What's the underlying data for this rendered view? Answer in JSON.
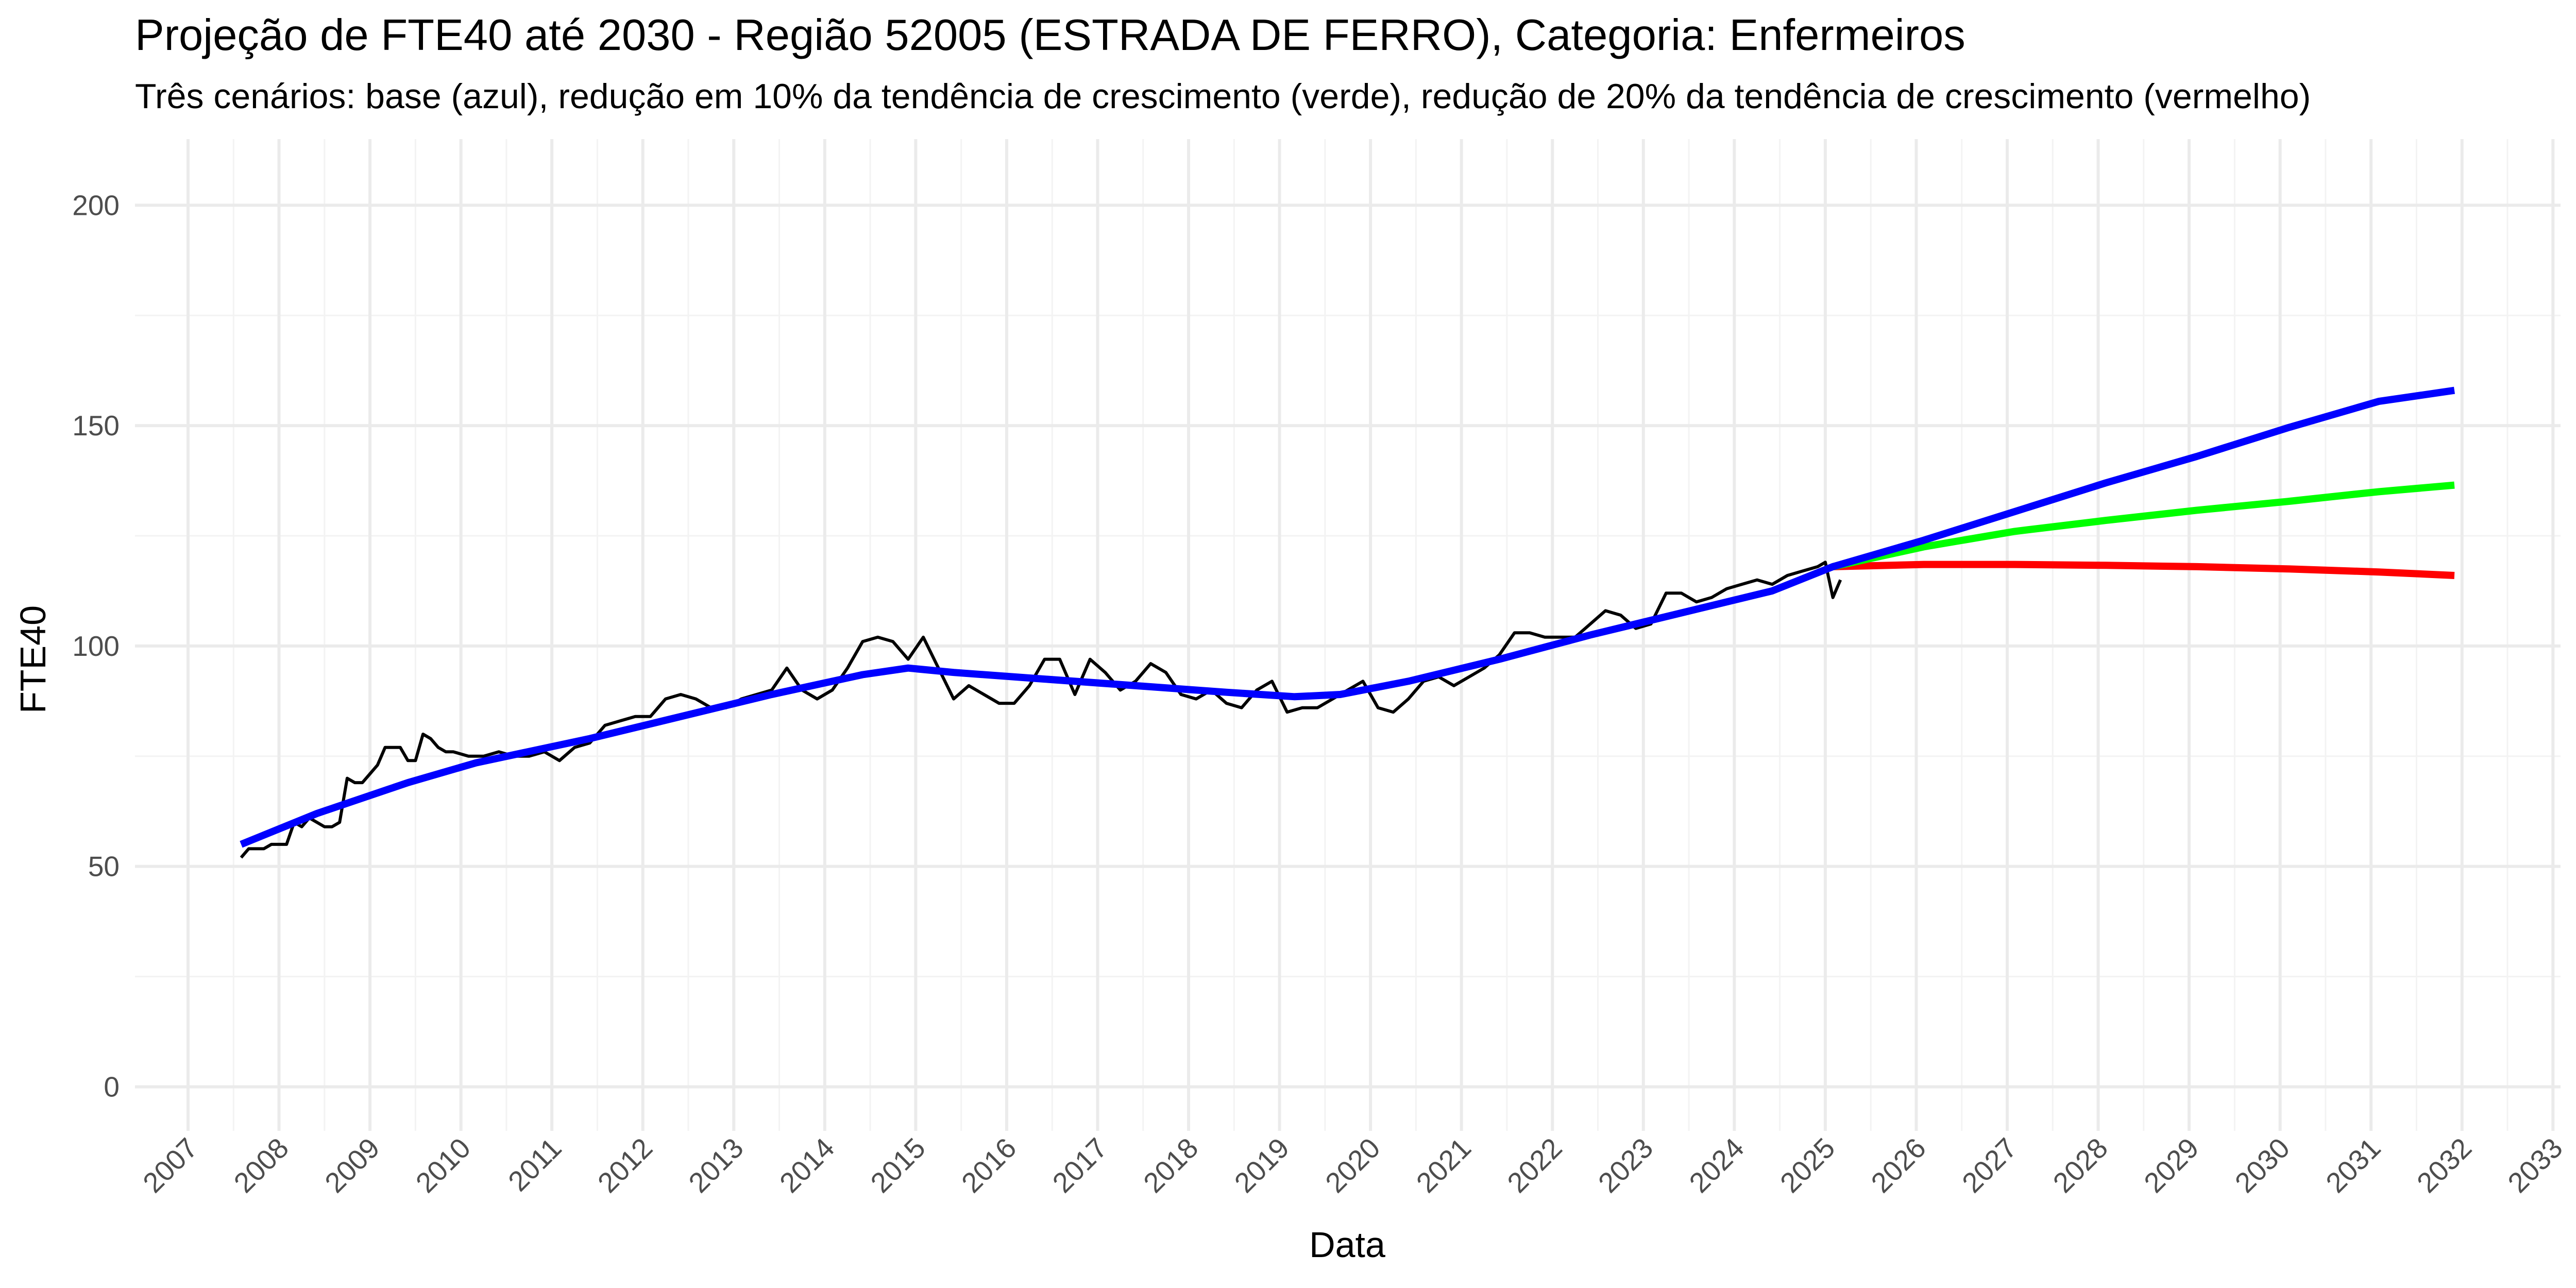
{
  "chart_data": {
    "type": "line",
    "title": "Projeção de FTE40 até 2030 - Região 52005 (ESTRADA DE FERRO), Categoria: Enfermeiros",
    "subtitle": "Três cenários: base (azul), redução em 10% da tendência de crescimento (verde), redução de 20% da tendência de crescimento (vermelho)",
    "xlabel": "Data",
    "ylabel": "FTE40",
    "xlim": [
      "2006-06-01",
      "2033-02-01"
    ],
    "ylim": [
      -10,
      215
    ],
    "x_ticks": [
      "2007",
      "2008",
      "2009",
      "2010",
      "2011",
      "2012",
      "2013",
      "2014",
      "2015",
      "2016",
      "2017",
      "2018",
      "2019",
      "2020",
      "2021",
      "2022",
      "2023",
      "2024",
      "2025",
      "2026",
      "2027",
      "2028",
      "2029",
      "2030",
      "2031",
      "2032",
      "2033"
    ],
    "y_ticks": [
      0,
      50,
      100,
      150,
      200
    ],
    "grid": true,
    "legend": "none",
    "colors": {
      "observed": "#000000",
      "base": "#0000ff",
      "green": "#00ff00",
      "red": "#ff0000"
    },
    "series": [
      {
        "key": "observed",
        "color": "#000000",
        "x": [
          "2007-08-01",
          "2007-09-01",
          "2007-10-01",
          "2007-11-01",
          "2007-12-01",
          "2008-01-01",
          "2008-02-01",
          "2008-03-01",
          "2008-04-01",
          "2008-05-01",
          "2008-06-01",
          "2008-07-01",
          "2008-08-01",
          "2008-09-01",
          "2008-10-01",
          "2008-11-01",
          "2008-12-01",
          "2009-01-01",
          "2009-02-01",
          "2009-03-01",
          "2009-04-01",
          "2009-05-01",
          "2009-06-01",
          "2009-07-01",
          "2009-08-01",
          "2009-09-01",
          "2009-10-01",
          "2009-11-01",
          "2009-12-01",
          "2010-02-01",
          "2010-04-01",
          "2010-06-01",
          "2010-08-01",
          "2010-10-01",
          "2010-12-01",
          "2011-02-01",
          "2011-04-01",
          "2011-06-01",
          "2011-08-01",
          "2011-10-01",
          "2011-12-01",
          "2012-02-01",
          "2012-04-01",
          "2012-06-01",
          "2012-08-01",
          "2012-10-01",
          "2012-12-01",
          "2013-02-01",
          "2013-04-01",
          "2013-06-01",
          "2013-08-01",
          "2013-10-01",
          "2013-12-01",
          "2014-02-01",
          "2014-04-01",
          "2014-06-01",
          "2014-08-01",
          "2014-10-01",
          "2014-12-01",
          "2015-02-01",
          "2015-04-01",
          "2015-06-01",
          "2015-08-01",
          "2015-10-01",
          "2015-12-01",
          "2016-02-01",
          "2016-04-01",
          "2016-06-01",
          "2016-08-01",
          "2016-10-01",
          "2016-12-01",
          "2017-02-01",
          "2017-04-01",
          "2017-06-01",
          "2017-08-01",
          "2017-10-01",
          "2017-12-01",
          "2018-02-01",
          "2018-04-01",
          "2018-06-01",
          "2018-08-01",
          "2018-10-01",
          "2018-12-01",
          "2019-02-01",
          "2019-04-01",
          "2019-06-01",
          "2019-08-01",
          "2019-10-01",
          "2019-12-01",
          "2020-02-01",
          "2020-04-01",
          "2020-06-01",
          "2020-08-01",
          "2020-10-01",
          "2020-12-01",
          "2021-02-01",
          "2021-04-01",
          "2021-06-01",
          "2021-08-01",
          "2021-10-01",
          "2021-12-01",
          "2022-02-01",
          "2022-04-01",
          "2022-06-01",
          "2022-08-01",
          "2022-10-01",
          "2022-12-01",
          "2023-02-01",
          "2023-04-01",
          "2023-06-01",
          "2023-08-01",
          "2023-10-01",
          "2023-12-01",
          "2024-02-01",
          "2024-04-01",
          "2024-06-01",
          "2024-08-01",
          "2024-10-01",
          "2024-12-01",
          "2025-01-01",
          "2025-02-01",
          "2025-03-01"
        ],
        "values": [
          52,
          54,
          54,
          54,
          55,
          55,
          55,
          60,
          59,
          61,
          60,
          59,
          59,
          60,
          70,
          69,
          69,
          71,
          73,
          77,
          77,
          77,
          74,
          74,
          80,
          79,
          77,
          76,
          76,
          75,
          75,
          76,
          75,
          75,
          76,
          74,
          77,
          78,
          82,
          83,
          84,
          84,
          88,
          89,
          88,
          86,
          86,
          88,
          89,
          90,
          95,
          90,
          88,
          90,
          95,
          101,
          102,
          101,
          97,
          102,
          95,
          88,
          91,
          89,
          87,
          87,
          91,
          97,
          97,
          89,
          97,
          94,
          90,
          92,
          96,
          94,
          89,
          88,
          90,
          87,
          86,
          90,
          92,
          85,
          86,
          86,
          88,
          90,
          92,
          86,
          85,
          88,
          92,
          93,
          91,
          93,
          95,
          98,
          103,
          103,
          102,
          102,
          102,
          105,
          108,
          107,
          104,
          105,
          112,
          112,
          110,
          111,
          113,
          114,
          115,
          114,
          116,
          117,
          118,
          119,
          111,
          115
        ]
      },
      {
        "key": "base",
        "color": "#0000ff",
        "x": [
          "2007-08-01",
          "2008-06-01",
          "2009-06-01",
          "2010-03-01",
          "2011-06-01",
          "2012-06-01",
          "2013-06-01",
          "2014-06-01",
          "2014-12-01",
          "2015-06-01",
          "2016-06-01",
          "2017-06-01",
          "2018-06-01",
          "2019-03-01",
          "2019-09-01",
          "2020-06-01",
          "2021-06-01",
          "2022-06-01",
          "2023-06-01",
          "2024-06-01",
          "2025-02-01",
          "2026-02-01",
          "2027-02-01",
          "2028-02-01",
          "2029-02-01",
          "2030-02-01",
          "2031-02-01",
          "2031-12-01"
        ],
        "values": [
          55,
          62,
          69,
          73.5,
          79,
          84,
          89,
          93.5,
          95,
          94,
          92.5,
          91,
          89.5,
          88.5,
          89,
          92,
          97,
          102.5,
          107.5,
          112.5,
          118,
          124,
          130.5,
          137,
          143,
          149.5,
          155.5,
          158
        ]
      },
      {
        "key": "green",
        "color": "#00ff00",
        "x": [
          "2025-02-01",
          "2026-02-01",
          "2027-02-01",
          "2028-02-01",
          "2029-02-01",
          "2030-02-01",
          "2031-02-01",
          "2031-12-01"
        ],
        "values": [
          118,
          122.5,
          126,
          128.5,
          130.8,
          132.8,
          135,
          136.5
        ]
      },
      {
        "key": "red",
        "color": "#ff0000",
        "x": [
          "2025-02-01",
          "2026-02-01",
          "2027-02-01",
          "2028-02-01",
          "2029-02-01",
          "2030-02-01",
          "2031-02-01",
          "2031-12-01"
        ],
        "values": [
          118,
          118.5,
          118.5,
          118.3,
          118,
          117.5,
          116.8,
          116
        ]
      }
    ]
  }
}
